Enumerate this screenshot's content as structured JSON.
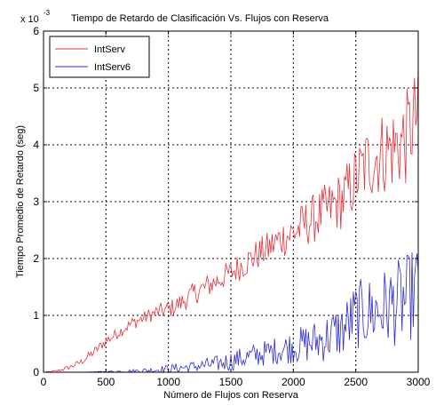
{
  "chart_data": {
    "type": "line",
    "title": "Tiempo de Retardo de Clasificación Vs. Flujos con Reserva",
    "xlabel": "Número de Flujos con Reserva",
    "ylabel": "Tiempo Promedio de Retardo (seg)",
    "y_exponent_label": "x 10",
    "y_exponent_power": "-3",
    "xlim": [
      0,
      3000
    ],
    "ylim": [
      0,
      6
    ],
    "x_ticks": [
      "0",
      "500",
      "1000",
      "1500",
      "2000",
      "2500",
      "3000"
    ],
    "y_ticks": [
      "0",
      "1",
      "2",
      "3",
      "4",
      "5",
      "6"
    ],
    "grid": true,
    "legend_position": "top-left",
    "series": [
      {
        "name": "IntServ",
        "color": "#e8303a",
        "points": [
          [
            0,
            0
          ],
          [
            100,
            0.02
          ],
          [
            200,
            0.08
          ],
          [
            300,
            0.18
          ],
          [
            400,
            0.35
          ],
          [
            500,
            0.55
          ],
          [
            600,
            0.7
          ],
          [
            700,
            0.85
          ],
          [
            800,
            0.95
          ],
          [
            900,
            1.05
          ],
          [
            1000,
            1.1
          ],
          [
            1100,
            1.22
          ],
          [
            1200,
            1.38
          ],
          [
            1300,
            1.5
          ],
          [
            1400,
            1.62
          ],
          [
            1500,
            1.75
          ],
          [
            1600,
            1.9
          ],
          [
            1700,
            2.05
          ],
          [
            1800,
            2.18
          ],
          [
            1900,
            2.35
          ],
          [
            2000,
            2.45
          ],
          [
            2100,
            2.62
          ],
          [
            2200,
            2.75
          ],
          [
            2300,
            2.9
          ],
          [
            2400,
            3.05
          ],
          [
            2500,
            3.4
          ],
          [
            2600,
            3.7
          ],
          [
            2700,
            3.85
          ],
          [
            2800,
            3.95
          ],
          [
            2900,
            4.1
          ],
          [
            3000,
            4.6
          ]
        ],
        "noise": [
          0,
          0.02,
          0.04,
          0.06,
          0.08,
          0.1,
          0.1,
          0.12,
          0.12,
          0.14,
          0.16,
          0.18,
          0.2,
          0.22,
          0.22,
          0.24,
          0.26,
          0.28,
          0.3,
          0.34,
          0.38,
          0.42,
          0.46,
          0.5,
          0.55,
          0.6,
          0.7,
          0.75,
          0.8,
          0.85,
          0.85
        ]
      },
      {
        "name": "IntServ6",
        "color": "#2a2ad6",
        "points": [
          [
            0,
            0
          ],
          [
            300,
            0
          ],
          [
            500,
            0.01
          ],
          [
            700,
            0.02
          ],
          [
            900,
            0.04
          ],
          [
            1000,
            0.06
          ],
          [
            1200,
            0.1
          ],
          [
            1400,
            0.15
          ],
          [
            1500,
            0.2
          ],
          [
            1700,
            0.3
          ],
          [
            1900,
            0.4
          ],
          [
            2000,
            0.45
          ],
          [
            2100,
            0.5
          ],
          [
            2200,
            0.55
          ],
          [
            2300,
            0.65
          ],
          [
            2400,
            0.75
          ],
          [
            2500,
            1.0
          ],
          [
            2600,
            1.05
          ],
          [
            2700,
            1.1
          ],
          [
            2800,
            1.2
          ],
          [
            2900,
            1.25
          ],
          [
            3000,
            1.5
          ]
        ],
        "noise": [
          0,
          0,
          0.01,
          0.03,
          0.06,
          0.08,
          0.1,
          0.15,
          0.18,
          0.22,
          0.25,
          0.3,
          0.35,
          0.4,
          0.45,
          0.5,
          0.6,
          0.65,
          0.7,
          0.75,
          0.8,
          0.8
        ]
      }
    ]
  }
}
